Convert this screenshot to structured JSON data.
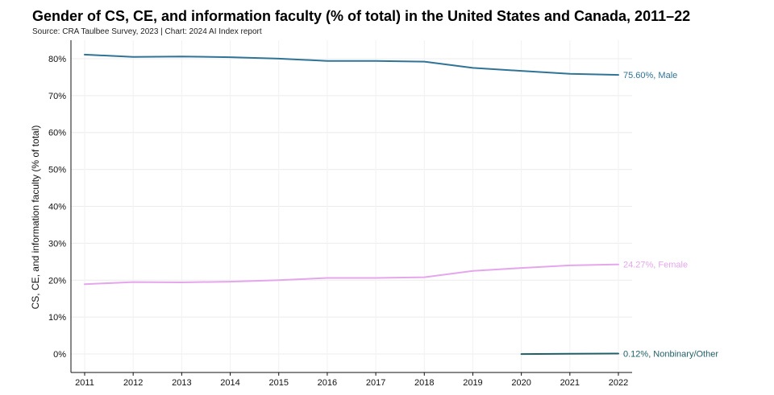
{
  "title": "Gender of CS, CE, and information faculty (% of total) in the United States and Canada, 2011–22",
  "source": "Source: CRA Taulbee Survey, 2023 | Chart: 2024 AI Index report",
  "chart_data": {
    "type": "line",
    "title": "Gender of CS, CE, and information faculty (% of total) in the United States and Canada, 2011–22",
    "ylabel": "CS, CE, and information faculty (% of total)",
    "xlabel": "",
    "x": [
      2011,
      2012,
      2013,
      2014,
      2015,
      2016,
      2017,
      2018,
      2019,
      2020,
      2021,
      2022
    ],
    "x_tick_labels": [
      "2011",
      "2012",
      "2013",
      "2014",
      "2015",
      "2016",
      "2017",
      "2018",
      "2019",
      "2020",
      "2021",
      "2022"
    ],
    "ylim": [
      -5,
      85
    ],
    "y_ticks": [
      0,
      10,
      20,
      30,
      40,
      50,
      60,
      70,
      80
    ],
    "y_tick_labels": [
      "0%",
      "10%",
      "20%",
      "30%",
      "40%",
      "50%",
      "60%",
      "70%",
      "80%"
    ],
    "grid": true,
    "legend": "direct end-of-line labels",
    "series": [
      {
        "key": "male",
        "color": "#2f7396",
        "x": [
          2011,
          2012,
          2013,
          2014,
          2015,
          2016,
          2017,
          2018,
          2019,
          2020,
          2021,
          2022
        ],
        "values": [
          81.1,
          80.5,
          80.6,
          80.4,
          80.0,
          79.4,
          79.4,
          79.2,
          77.5,
          76.7,
          75.9,
          75.6
        ],
        "end_label": "75.60%, Male"
      },
      {
        "key": "female",
        "color": "#e5a6ec",
        "x": [
          2011,
          2012,
          2013,
          2014,
          2015,
          2016,
          2017,
          2018,
          2019,
          2020,
          2021,
          2022
        ],
        "values": [
          18.9,
          19.5,
          19.4,
          19.6,
          20.0,
          20.6,
          20.6,
          20.8,
          22.5,
          23.3,
          24.0,
          24.27
        ],
        "end_label": "24.27%, Female"
      },
      {
        "key": "nonbinary",
        "color": "#1f5f66",
        "x": [
          2020,
          2021,
          2022
        ],
        "values": [
          0.0,
          0.05,
          0.12
        ],
        "end_label": "0.12%, Nonbinary/Other"
      }
    ]
  }
}
